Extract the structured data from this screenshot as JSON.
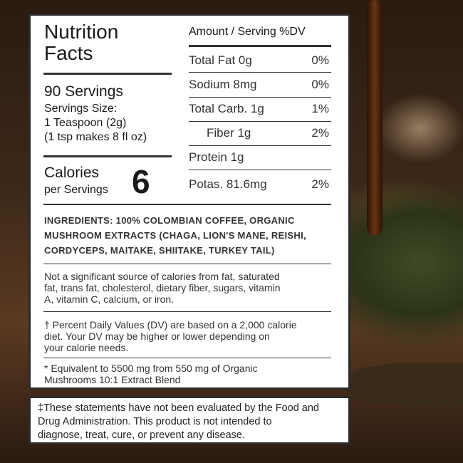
{
  "label": {
    "title_line1": "Nutrition",
    "title_line2": "Facts",
    "servings": "90 Servings",
    "serving_size_label": "Servings Size:",
    "serving_size_value": "1 Teaspoon (2g)",
    "serving_note": "(1 tsp makes 8 fl oz)",
    "calories_label": "Calories",
    "calories_per": "per Servings",
    "calories_value": "6",
    "table_header": "Amount / Serving %DV",
    "rows": [
      {
        "name": "Total Fat 0g",
        "dv": "0%"
      },
      {
        "name": "Sodium 8mg",
        "dv": "0%"
      },
      {
        "name": "Total Carb. 1g",
        "dv": "1%"
      },
      {
        "name": "Fiber 1g",
        "dv": "2%"
      },
      {
        "name": "Protein 1g",
        "dv": ""
      },
      {
        "name": "Potas. 81.6mg",
        "dv": "2%"
      }
    ],
    "ingredients": [
      "INGREDIENTS: 100% COLOMBIAN COFFEE, ORGANIC",
      "MUSHROOM EXTRACTS (CHAGA, LION'S MANE, REISHI,",
      "CORDYCEPS, MAITAKE, SHIITAKE, TURKEY TAIL)"
    ],
    "not_significant": [
      "Not a significant source of calories from fat, saturated",
      "fat, trans fat, cholesterol, dietary fiber, sugars, vitamin",
      "A, vitamin C, calcium, or iron."
    ],
    "dv_note": [
      "† Percent Daily Values (DV) are based on a 2,000 calorie",
      "diet.  Your DV may be higher or lower depending on",
      "your calorie needs."
    ],
    "equivalent": [
      "* Equivalent to 5500 mg from 550 mg of Organic",
      "Mushrooms 10:1 Extract Blend"
    ]
  },
  "disclaimer": [
    "‡These statements have not been evaluated by the Food and",
    "Drug Administration. This product is not intended to",
    "diagnose, treat, cure, or prevent any disease."
  ]
}
